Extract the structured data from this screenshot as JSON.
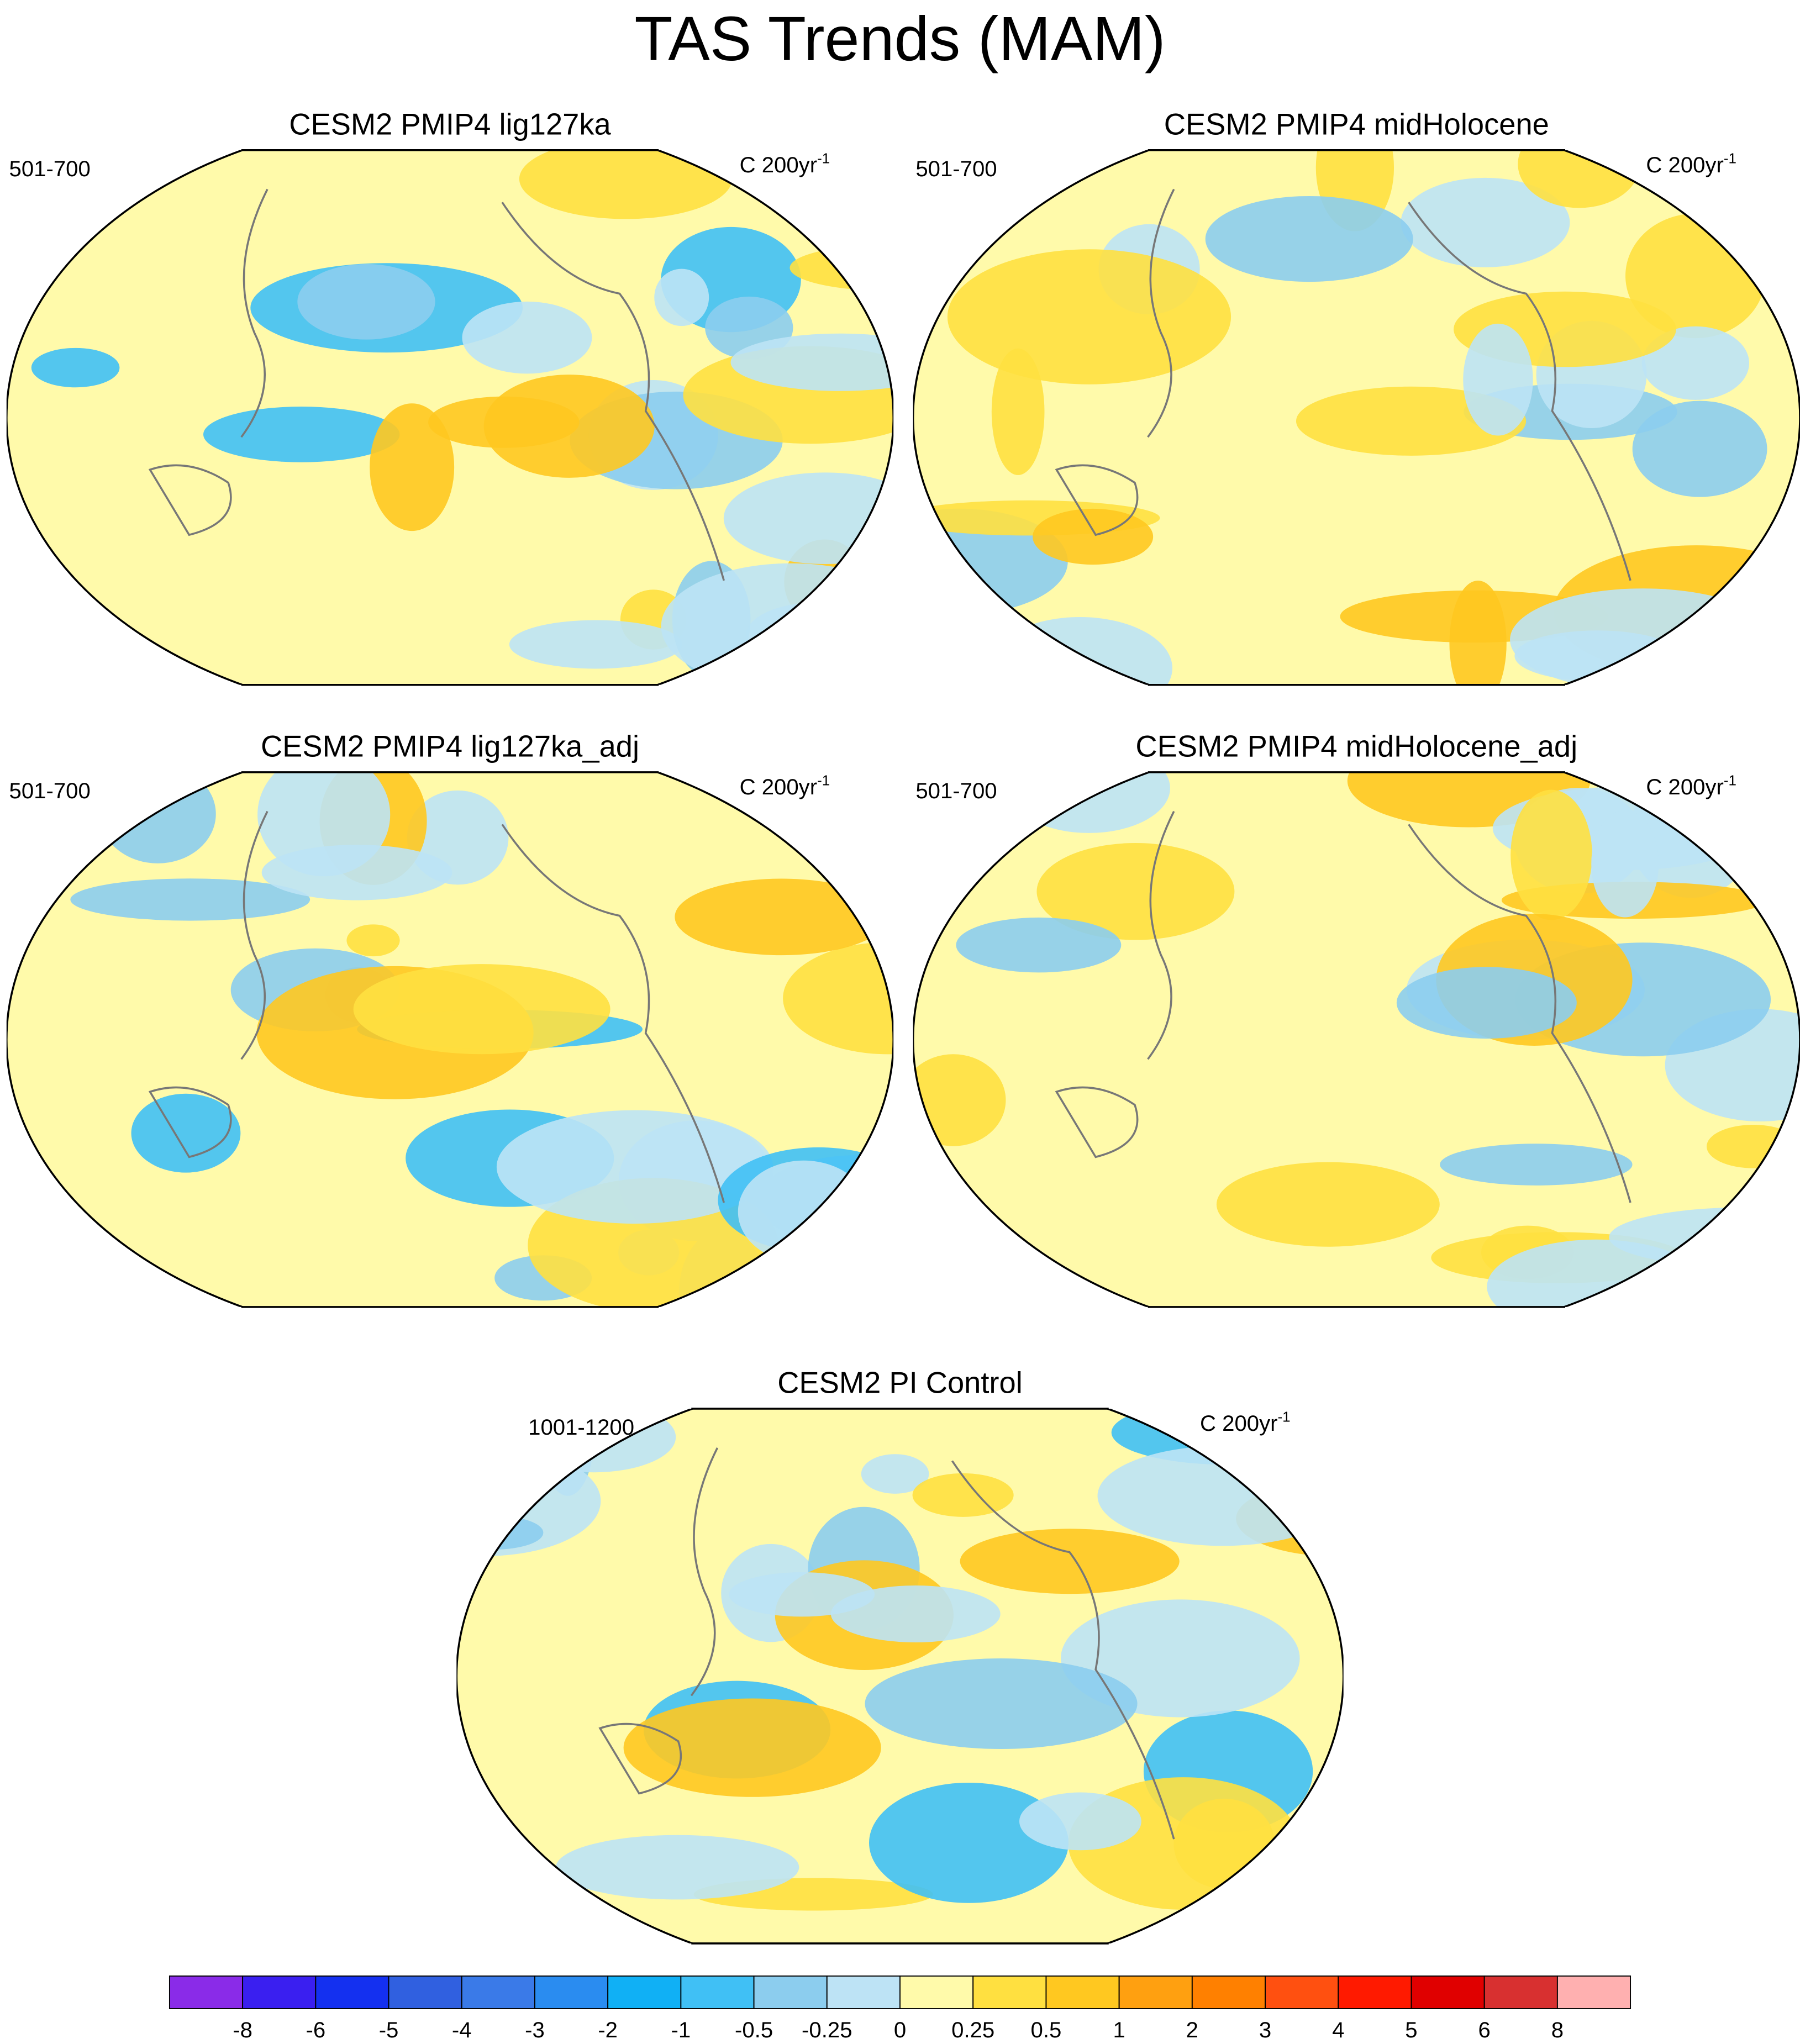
{
  "title": "TAS Trends (MAM)",
  "panels": [
    {
      "title": "CESM2 PMIP4 lig127ka",
      "period": "501-700",
      "units": "C 200yr",
      "units_exp": "-1"
    },
    {
      "title": "CESM2 PMIP4 midHolocene",
      "period": "501-700",
      "units": "C 200yr",
      "units_exp": "-1"
    },
    {
      "title": "CESM2 PMIP4 lig127ka_adj",
      "period": "501-700",
      "units": "C 200yr",
      "units_exp": "-1"
    },
    {
      "title": "CESM2 PMIP4 midHolocene_adj",
      "period": "501-700",
      "units": "C 200yr",
      "units_exp": "-1"
    },
    {
      "title": "CESM2 PI Control",
      "period": "1001-1200",
      "units": "C 200yr",
      "units_exp": "-1"
    }
  ],
  "colorbar": {
    "levels": [
      -8,
      -6,
      -5,
      -4,
      -3,
      -2,
      -1,
      -0.5,
      -0.25,
      0,
      0.25,
      0.5,
      1,
      2,
      3,
      4,
      5,
      6,
      8
    ],
    "colors": [
      "#8a2be8",
      "#3a1ff0",
      "#1430f0",
      "#3060e0",
      "#3a7ae8",
      "#2a8cf0",
      "#10b0f5",
      "#40c0f5",
      "#8ccdee",
      "#bde3f5",
      "#fffaaa",
      "#ffe040",
      "#ffc820",
      "#ffa010",
      "#ff8000",
      "#ff5010",
      "#ff1a00",
      "#e00000",
      "#d83030",
      "#ffb0b0"
    ]
  }
}
